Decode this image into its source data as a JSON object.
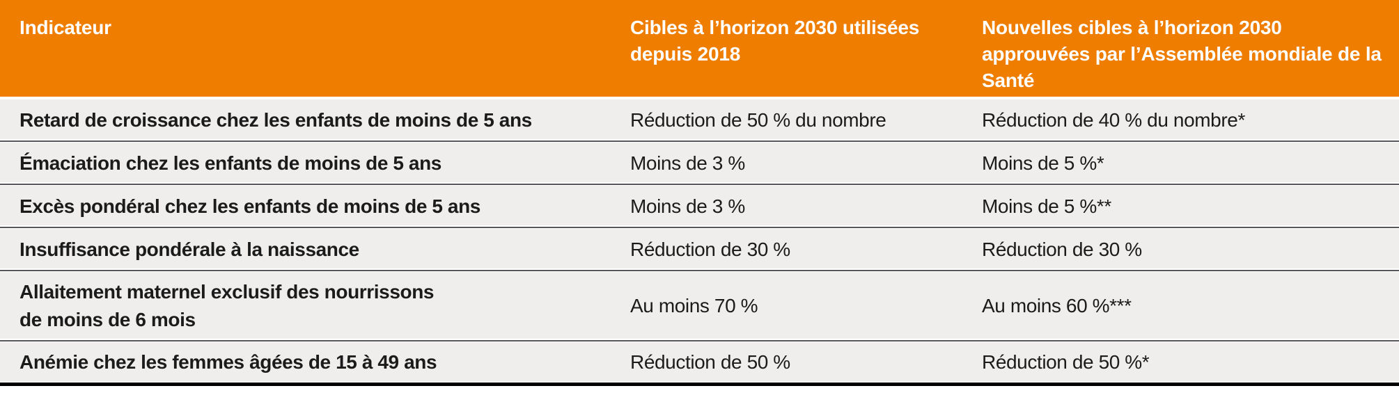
{
  "theme": {
    "header_bg": "#EF7D00",
    "header_text": "#FFFFFF",
    "row_bg": "#EFEEEC",
    "row_text": "#1B1B1B",
    "separator": "#57575B",
    "bottom_border": "#000000"
  },
  "table": {
    "columns": [
      {
        "label": "Indicateur"
      },
      {
        "label": "Cibles à l’horizon 2030 utilisées depuis 2018"
      },
      {
        "label": "Nouvelles cibles à l’horizon 2030 approuvées par l’Assemblée mondiale de la Santé"
      }
    ],
    "rows": [
      {
        "indicator": "Retard de croissance chez les enfants de moins de 5 ans",
        "target_2018": "Réduction de 50 % du nombre",
        "target_new": "Réduction de 40 % du nombre*"
      },
      {
        "indicator": "Émaciation chez les enfants de moins de 5 ans",
        "target_2018": "Moins de 3 %",
        "target_new": "Moins de 5 %*"
      },
      {
        "indicator": "Excès pondéral chez les enfants de moins de 5 ans",
        "target_2018": "Moins de 3 %",
        "target_new": "Moins de 5 %**"
      },
      {
        "indicator": "Insuffisance pondérale à la naissance",
        "target_2018": "Réduction de 30 %",
        "target_new": "Réduction de 30 %"
      },
      {
        "indicator": "Allaitement maternel exclusif des nourrissons\nde moins de 6 mois",
        "target_2018": "Au moins 70 %",
        "target_new": "Au moins 60 %***"
      },
      {
        "indicator": "Anémie chez les femmes âgées de 15 à 49 ans",
        "target_2018": "Réduction de 50 %",
        "target_new": "Réduction de 50 %*"
      }
    ]
  }
}
